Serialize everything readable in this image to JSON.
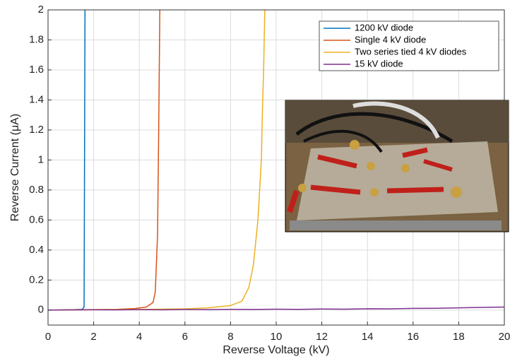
{
  "chart_data": {
    "type": "line",
    "xlabel": "Reverse Voltage (kV)",
    "ylabel": "Reverse Current (μA)",
    "xlim": [
      0,
      20
    ],
    "ylim": [
      -0.1,
      2
    ],
    "xticks": [
      0,
      2,
      4,
      6,
      8,
      10,
      12,
      14,
      16,
      18,
      20
    ],
    "yticks": [
      0,
      0.2,
      0.4,
      0.6,
      0.8,
      1,
      1.2,
      1.4,
      1.6,
      1.8,
      2
    ],
    "grid": true,
    "legend": "upper right",
    "series": [
      {
        "name": "1200 kV diode",
        "color": "#0072bd",
        "x": [
          0,
          0.5,
          1,
          1.5,
          1.58,
          1.6,
          1.62
        ],
        "values": [
          0,
          0,
          0.002,
          0.005,
          0.02,
          1,
          2
        ]
      },
      {
        "name": "Single 4 kV diode",
        "color": "#d95319",
        "x": [
          0,
          1,
          2,
          3,
          3.8,
          4.3,
          4.6,
          4.7,
          4.8,
          4.85,
          4.9
        ],
        "values": [
          0,
          0.002,
          0.003,
          0.005,
          0.01,
          0.02,
          0.05,
          0.12,
          0.5,
          1.2,
          2
        ]
      },
      {
        "name": "Two series tied 4 kV diodes",
        "color": "#edb120",
        "x": [
          0,
          2,
          4,
          6,
          7,
          8,
          8.5,
          8.8,
          9,
          9.2,
          9.35,
          9.4,
          9.45,
          9.5
        ],
        "values": [
          0,
          0.002,
          0.004,
          0.008,
          0.015,
          0.03,
          0.06,
          0.15,
          0.3,
          0.6,
          1,
          1.35,
          1.6,
          2
        ]
      },
      {
        "name": "15 kV diode",
        "color": "#7e2f8e",
        "x": [
          0,
          1,
          2,
          3,
          4,
          5,
          6,
          7,
          8,
          9,
          10,
          11,
          12,
          13,
          14,
          15,
          16,
          17,
          18,
          19,
          20
        ],
        "values": [
          0,
          0.001,
          0.002,
          0.001,
          0.003,
          0.002,
          0.004,
          0.003,
          0.005,
          0.004,
          0.006,
          0.005,
          0.007,
          0.006,
          0.009,
          0.008,
          0.011,
          0.012,
          0.015,
          0.018,
          0.02
        ]
      }
    ]
  }
}
